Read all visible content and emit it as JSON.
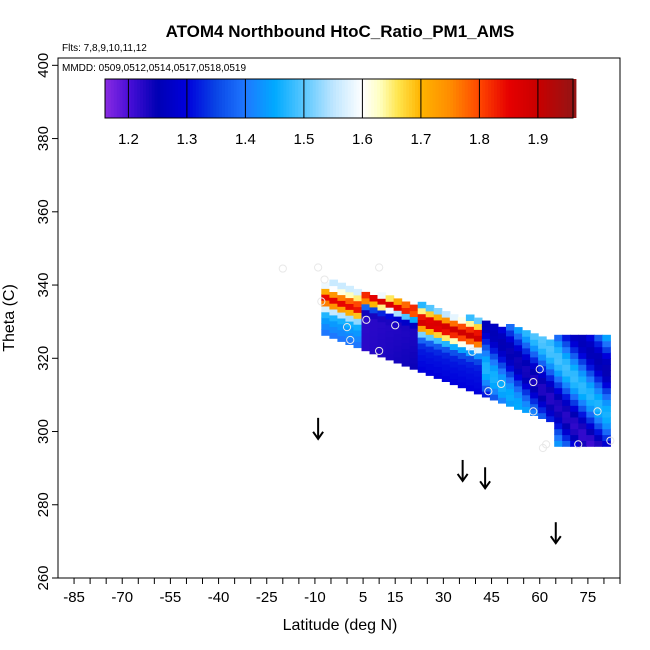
{
  "chart_data": {
    "type": "heatmap",
    "title": "ATOM4 Northbound HtoC_Ratio_PM1_AMS",
    "flights_label": "Flts: 7,8,9,10,11,12",
    "dates_label": "MMDD: 0509,0512,0514,0517,0518,0519",
    "xlabel": "Latitude (deg N)",
    "ylabel": "Theta (C)",
    "xlim": [
      -90,
      85
    ],
    "ylim": [
      260,
      402
    ],
    "xticks": [
      -85,
      -70,
      -55,
      -40,
      -25,
      -10,
      5,
      15,
      30,
      45,
      60,
      75
    ],
    "yticks": [
      260,
      280,
      300,
      320,
      340,
      360,
      380,
      400
    ],
    "colorbar": {
      "range": [
        1.16,
        1.96
      ],
      "ticks": [
        "1.2",
        "1.3",
        "1.4",
        "1.5",
        "1.6",
        "1.7",
        "1.8",
        "1.9"
      ],
      "tick_values": [
        1.2,
        1.3,
        1.4,
        1.5,
        1.6,
        1.7,
        1.8,
        1.9
      ],
      "stops": [
        [
          1.16,
          "#8a2be2"
        ],
        [
          1.2,
          "#4b0fd8"
        ],
        [
          1.25,
          "#0000b4"
        ],
        [
          1.3,
          "#0000dc"
        ],
        [
          1.35,
          "#0a46e6"
        ],
        [
          1.4,
          "#1e78ff"
        ],
        [
          1.45,
          "#00aaff"
        ],
        [
          1.5,
          "#5ac8ff"
        ],
        [
          1.55,
          "#bee6ff"
        ],
        [
          1.6,
          "#ffffff"
        ],
        [
          1.63,
          "#ffffc0"
        ],
        [
          1.66,
          "#ffe650"
        ],
        [
          1.7,
          "#ffb400"
        ],
        [
          1.75,
          "#ff8c00"
        ],
        [
          1.8,
          "#ff4600"
        ],
        [
          1.85,
          "#e60000"
        ],
        [
          1.9,
          "#c80000"
        ],
        [
          1.96,
          "#961414"
        ]
      ]
    },
    "field": {
      "theta_lat_upper_left": [
        -28,
        345
      ],
      "theta_lat_lower_left": [
        -10,
        327
      ],
      "theta_lat_upper_right": [
        62,
        325
      ],
      "theta_lat_lower_right": [
        82,
        296
      ],
      "lat_step": 2.5,
      "theta_step": 1.6
    },
    "samples": [
      {
        "lat": -20,
        "theta": 344.5
      },
      {
        "lat": -9,
        "theta": 344.8
      },
      {
        "lat": -7,
        "theta": 341.5
      },
      {
        "lat": -8,
        "theta": 335.5
      },
      {
        "lat": 10,
        "theta": 344.8
      },
      {
        "lat": 6,
        "theta": 330.5
      },
      {
        "lat": 0,
        "theta": 328.5
      },
      {
        "lat": 15,
        "theta": 329
      },
      {
        "lat": 1,
        "theta": 325
      },
      {
        "lat": 10,
        "theta": 322
      },
      {
        "lat": 39,
        "theta": 321.8
      },
      {
        "lat": 60,
        "theta": 317
      },
      {
        "lat": 48,
        "theta": 313
      },
      {
        "lat": 58,
        "theta": 313.5
      },
      {
        "lat": 44,
        "theta": 311
      },
      {
        "lat": 58,
        "theta": 305.5
      },
      {
        "lat": 78,
        "theta": 305.5
      },
      {
        "lat": 62,
        "theta": 296.5
      },
      {
        "lat": 61,
        "theta": 295.5
      },
      {
        "lat": 72,
        "theta": 296.5
      },
      {
        "lat": 82,
        "theta": 297.5
      }
    ],
    "arrows": [
      {
        "lat": -9,
        "theta": 298
      },
      {
        "lat": 36,
        "theta": 286.5
      },
      {
        "lat": 43,
        "theta": 284.5
      },
      {
        "lat": 65,
        "theta": 269.5
      }
    ]
  }
}
